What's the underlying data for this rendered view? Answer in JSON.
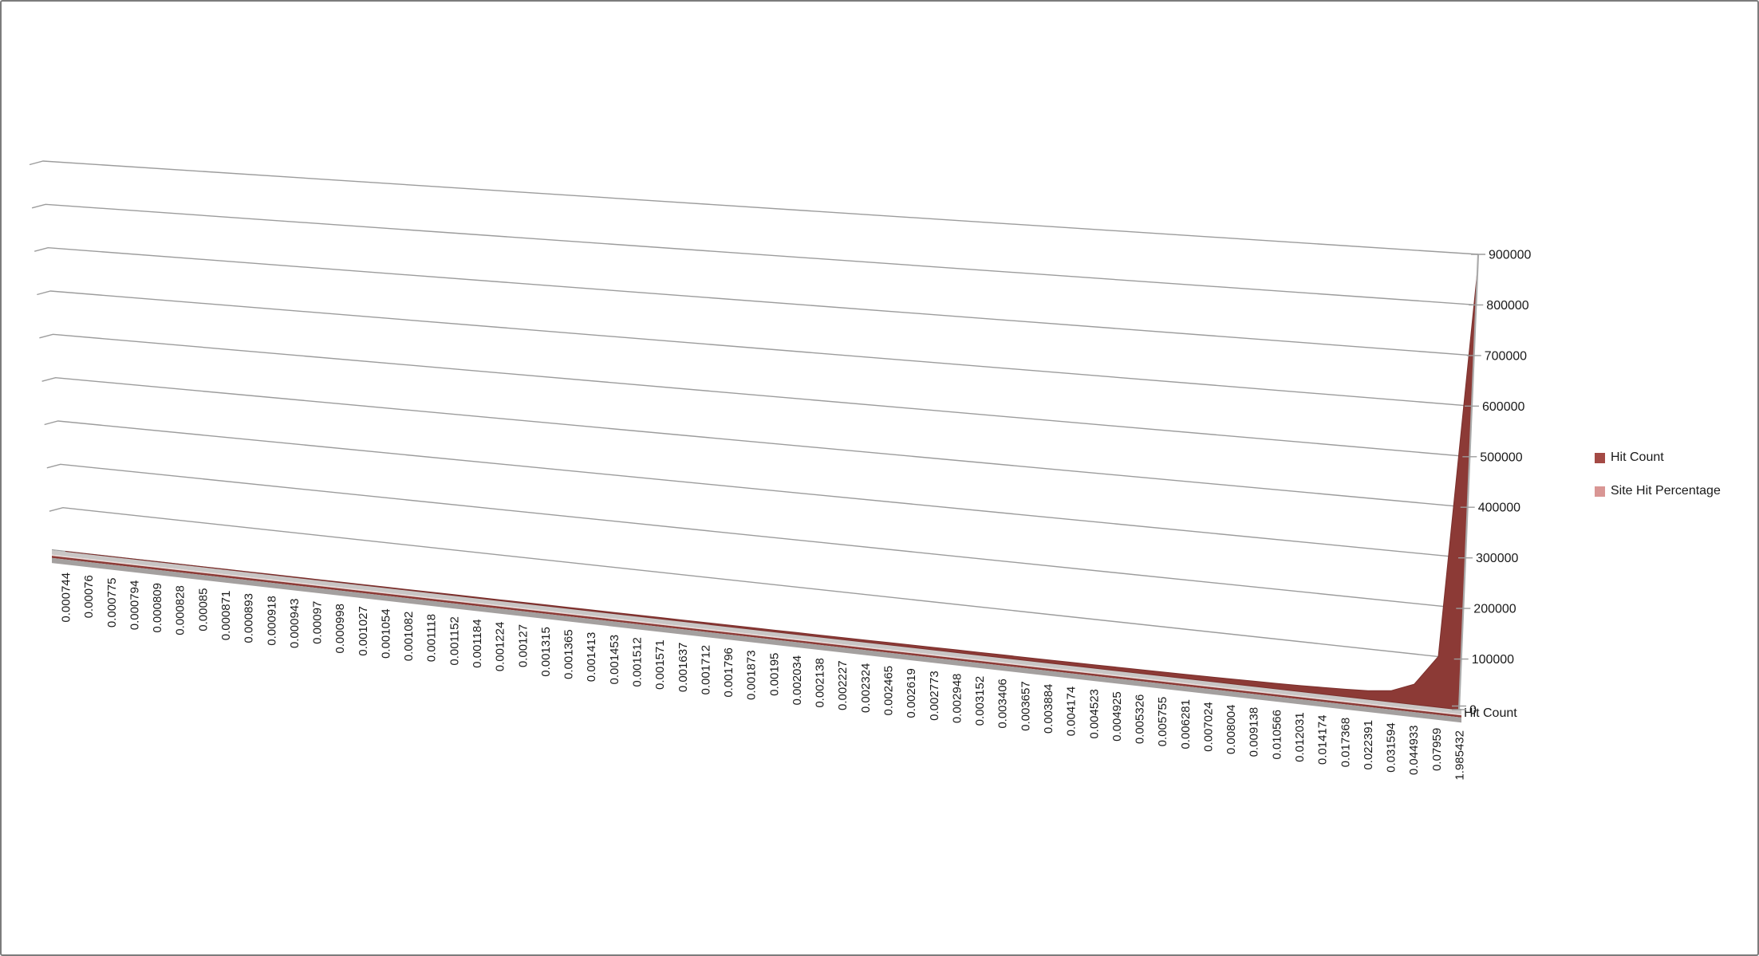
{
  "chart_data": {
    "type": "area",
    "projection": "3d",
    "title": "",
    "categories": [
      "0.000744",
      "0.00076",
      "0.000775",
      "0.000794",
      "0.000809",
      "0.000828",
      "0.00085",
      "0.000871",
      "0.000893",
      "0.000918",
      "0.000943",
      "0.00097",
      "0.000998",
      "0.001027",
      "0.001054",
      "0.001082",
      "0.001118",
      "0.001152",
      "0.001184",
      "0.001224",
      "0.00127",
      "0.001315",
      "0.001365",
      "0.001413",
      "0.001453",
      "0.001512",
      "0.001571",
      "0.001637",
      "0.001712",
      "0.001796",
      "0.001873",
      "0.00195",
      "0.002034",
      "0.002138",
      "0.002227",
      "0.002324",
      "0.002465",
      "0.002619",
      "0.002773",
      "0.002948",
      "0.003152",
      "0.003406",
      "0.003657",
      "0.003884",
      "0.004174",
      "0.004523",
      "0.004925",
      "0.005326",
      "0.005755",
      "0.006281",
      "0.007024",
      "0.008004",
      "0.009138",
      "0.010566",
      "0.012031",
      "0.014174",
      "0.017368",
      "0.022391",
      "0.031594",
      "0.044933",
      "0.07959",
      "1.985432"
    ],
    "series": [
      {
        "name": "Hit Count",
        "color": "#8C3A36",
        "legend_color": "#A44A45",
        "estimated": true,
        "values": [
          800,
          850,
          900,
          950,
          1000,
          1100,
          1150,
          1250,
          1300,
          1400,
          1500,
          1550,
          1650,
          1750,
          1850,
          1950,
          2050,
          2150,
          2250,
          2350,
          2450,
          2550,
          2650,
          2750,
          2900,
          3000,
          3100,
          3250,
          3400,
          3550,
          3700,
          3850,
          4000,
          4200,
          4400,
          4600,
          4800,
          5000,
          5300,
          5600,
          5700,
          5900,
          6100,
          6300,
          6600,
          6900,
          7200,
          7600,
          8000,
          8400,
          8900,
          9500,
          10200,
          11000,
          12000,
          13200,
          14800,
          17000,
          22000,
          40000,
          100000,
          870000
        ]
      },
      {
        "name": "Site Hit Percentage",
        "color": "#D99694",
        "legend_color": "#D99694",
        "estimated": true,
        "values": [
          0.000744,
          0.00076,
          0.000775,
          0.000794,
          0.000809,
          0.000828,
          0.00085,
          0.000871,
          0.000893,
          0.000918,
          0.000943,
          0.00097,
          0.000998,
          0.001027,
          0.001054,
          0.001082,
          0.001118,
          0.001152,
          0.001184,
          0.001224,
          0.00127,
          0.001315,
          0.001365,
          0.001413,
          0.001453,
          0.001512,
          0.001571,
          0.001637,
          0.001712,
          0.001796,
          0.001873,
          0.00195,
          0.002034,
          0.002138,
          0.002227,
          0.002324,
          0.002465,
          0.002619,
          0.002773,
          0.002948,
          0.003152,
          0.003406,
          0.003657,
          0.003884,
          0.004174,
          0.004523,
          0.004925,
          0.005326,
          0.005755,
          0.006281,
          0.007024,
          0.008004,
          0.009138,
          0.010566,
          0.012031,
          0.014174,
          0.017368,
          0.022391,
          0.031594,
          0.044933,
          0.07959,
          1.985432
        ]
      }
    ],
    "value_axis": {
      "min": 0,
      "max": 900000,
      "step": 100000,
      "tick_labels": [
        "0",
        "100000",
        "200000",
        "300000",
        "400000",
        "500000",
        "600000",
        "700000",
        "800000",
        "900000"
      ]
    },
    "series_axis_label": "Hit Count",
    "grid": true,
    "legend": {
      "position": "right",
      "entries": [
        {
          "label": "Hit Count",
          "color": "#A44A45"
        },
        {
          "label": "Site Hit Percentage",
          "color": "#D99694"
        }
      ]
    }
  }
}
